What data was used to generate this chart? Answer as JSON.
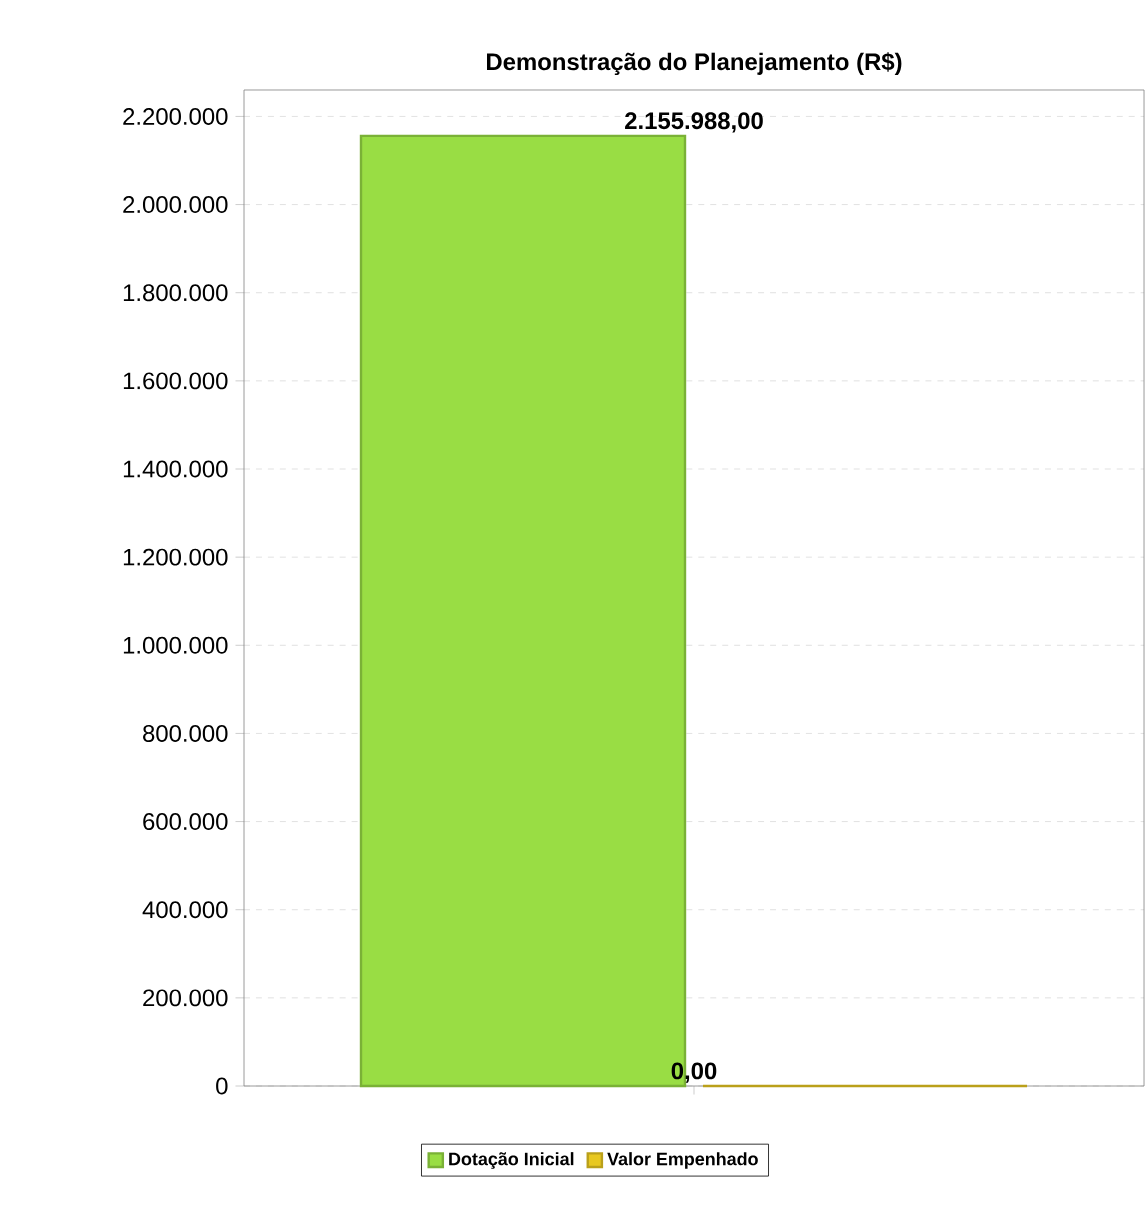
{
  "chart_data": {
    "type": "bar",
    "title": "Demonstração do Planejamento (R$)",
    "categories": [
      null
    ],
    "series": [
      {
        "name": "Dotação Inicial",
        "color": "#99dd44",
        "values": [
          2155988.0
        ],
        "value_labels": [
          "2.155.988,00"
        ]
      },
      {
        "name": "Valor Empenhado",
        "color": "#e8c820",
        "values": [
          0
        ],
        "value_labels": [
          "0,00"
        ]
      }
    ],
    "ylim": [
      0,
      2260000
    ],
    "yticks": [
      {
        "value": 0,
        "label": "0"
      },
      {
        "value": 200000,
        "label": "200.000"
      },
      {
        "value": 400000,
        "label": "400.000"
      },
      {
        "value": 600000,
        "label": "600.000"
      },
      {
        "value": 800000,
        "label": "800.000"
      },
      {
        "value": 1000000,
        "label": "1.000.000"
      },
      {
        "value": 1200000,
        "label": "1.200.000"
      },
      {
        "value": 1400000,
        "label": "1.400.000"
      },
      {
        "value": 1600000,
        "label": "1.600.000"
      },
      {
        "value": 1800000,
        "label": "1.800.000"
      },
      {
        "value": 2000000,
        "label": "2.000.000"
      },
      {
        "value": 2200000,
        "label": "2.200.000"
      }
    ],
    "grid": "y",
    "legend": "bottom"
  }
}
